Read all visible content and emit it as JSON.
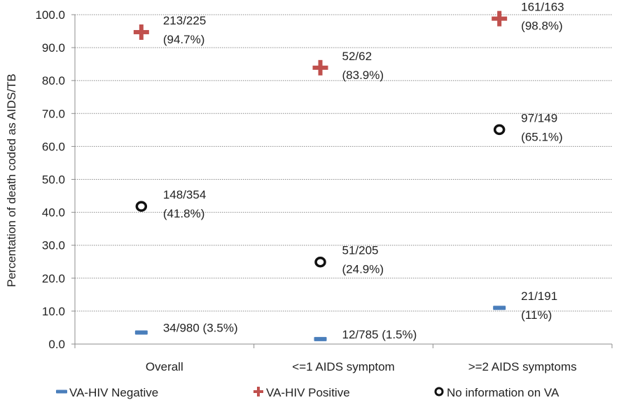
{
  "chart_data": {
    "type": "scatter",
    "title": "",
    "xlabel": "",
    "ylabel": "Percentation of death coded as AIDS/TB",
    "ylim": [
      0,
      100
    ],
    "yticks": [
      "0.0",
      "10.0",
      "20.0",
      "30.0",
      "40.0",
      "50.0",
      "60.0",
      "70.0",
      "80.0",
      "90.0",
      "100.0"
    ],
    "categories": [
      "Overall",
      "<=1 AIDS symptom",
      ">=2 AIDS symptoms"
    ],
    "grid": true,
    "legend_position": "bottom",
    "series": [
      {
        "name": "VA-HIV Negative",
        "marker": "dash",
        "color": "#4a7ebb",
        "values": [
          3.5,
          1.5,
          11
        ],
        "labels": [
          [
            "34/980 (3.5%)"
          ],
          [
            "12/785 (1.5%)"
          ],
          [
            "21/191",
            "(11%)"
          ]
        ]
      },
      {
        "name": "VA-HIV Positive",
        "marker": "plus",
        "color": "#c0504d",
        "values": [
          94.7,
          83.9,
          98.8
        ],
        "labels": [
          [
            "213/225",
            "(94.7%)"
          ],
          [
            "52/62",
            "(83.9%)"
          ],
          [
            "161/163",
            "(98.8%)"
          ]
        ]
      },
      {
        "name": "No information on VA",
        "marker": "circle",
        "color": "#111111",
        "values": [
          41.8,
          24.9,
          65.1
        ],
        "labels": [
          [
            "148/354",
            "(41.8%)"
          ],
          [
            "51/205",
            "(24.9%)"
          ],
          [
            "97/149",
            "(65.1%)"
          ]
        ]
      }
    ]
  }
}
